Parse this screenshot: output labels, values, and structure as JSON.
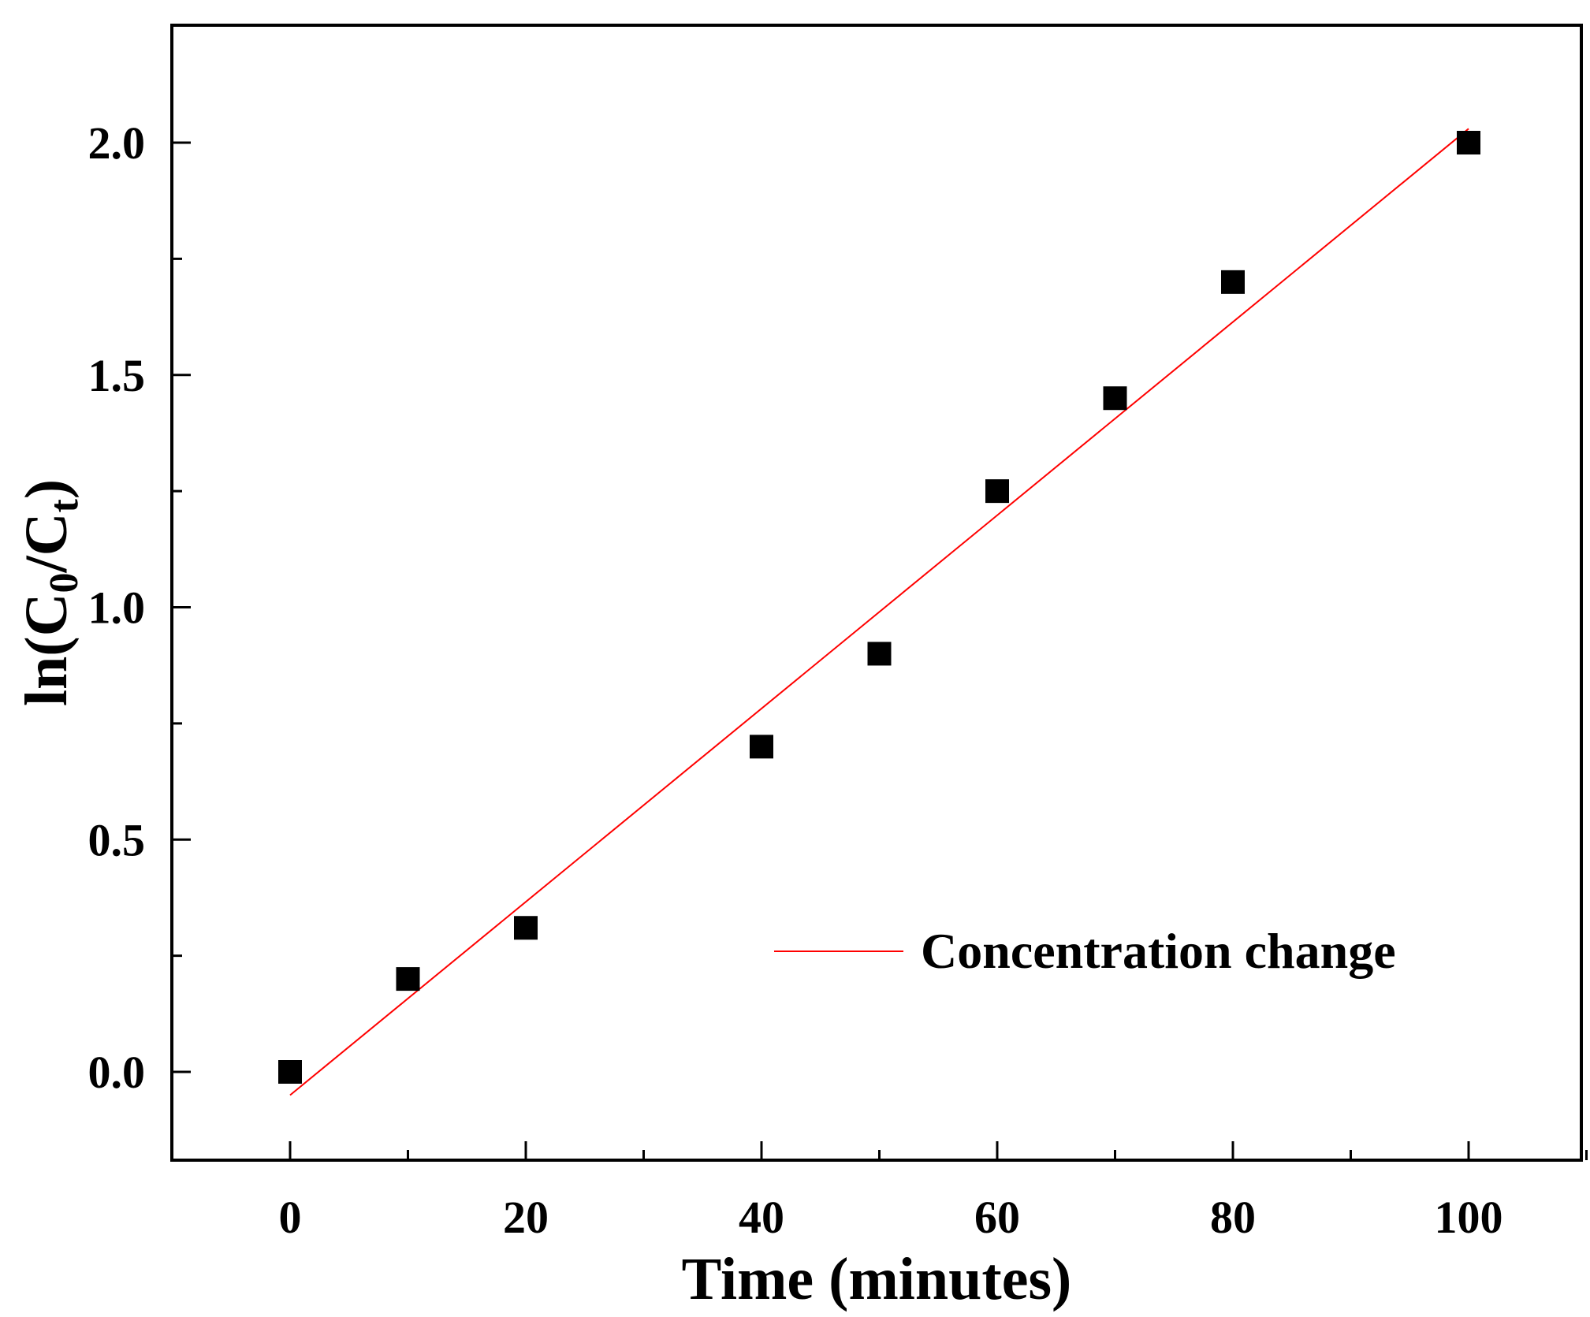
{
  "chart_data": {
    "type": "scatter",
    "title": "",
    "xlabel": "Time (minutes)",
    "ylabel": {
      "prefix": "ln(C",
      "sub1": "0",
      "mid": "/C",
      "sub2": "t",
      "suffix": ")"
    },
    "xlim": [
      -10,
      110
    ],
    "ylim": [
      -0.2,
      2.25
    ],
    "x_major_ticks": [
      0,
      20,
      40,
      60,
      80,
      100
    ],
    "x_tick_labels": [
      "0",
      "20",
      "40",
      "60",
      "80",
      "100"
    ],
    "x_minor_ticks": [
      10,
      30,
      50,
      70,
      90,
      110
    ],
    "y_major_ticks": [
      0.0,
      0.5,
      1.0,
      1.5,
      2.0
    ],
    "y_tick_labels": [
      "0.0",
      "0.5",
      "1.0",
      "1.5",
      "2.0"
    ],
    "y_minor_ticks": [
      0.25,
      0.75,
      1.25,
      1.75
    ],
    "series": [
      {
        "name": "data",
        "kind": "scatter",
        "marker": "square",
        "color": "#000000",
        "x": [
          0,
          10,
          20,
          40,
          50,
          60,
          70,
          80,
          100
        ],
        "y": [
          0.0,
          0.2,
          0.31,
          0.7,
          0.9,
          1.25,
          1.45,
          1.7,
          2.0
        ]
      },
      {
        "name": "Concentration change",
        "kind": "line",
        "color": "#ff0000",
        "x": [
          0,
          100
        ],
        "y": [
          -0.05,
          2.03
        ]
      }
    ],
    "legend": {
      "position": "lower-right",
      "entries": [
        "Concentration change"
      ]
    },
    "grid": false
  }
}
